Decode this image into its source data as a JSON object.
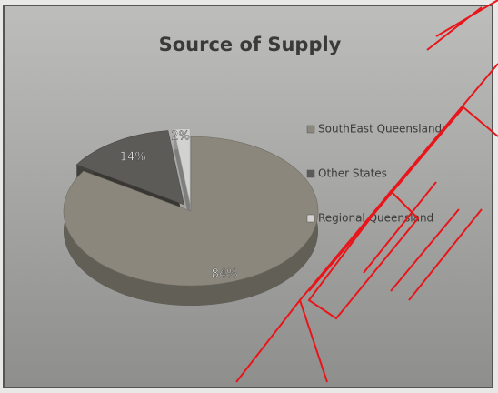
{
  "chart_data": {
    "type": "pie",
    "title": "Source of Supply",
    "categories": [
      "SouthEast Queensland",
      "Other States",
      "Regional Queensland"
    ],
    "values": [
      84,
      14,
      2
    ],
    "value_labels": [
      "84%",
      "14%",
      "2%"
    ],
    "colors": [
      "#8c877c",
      "#5d5b57",
      "#d2d2d0"
    ]
  }
}
